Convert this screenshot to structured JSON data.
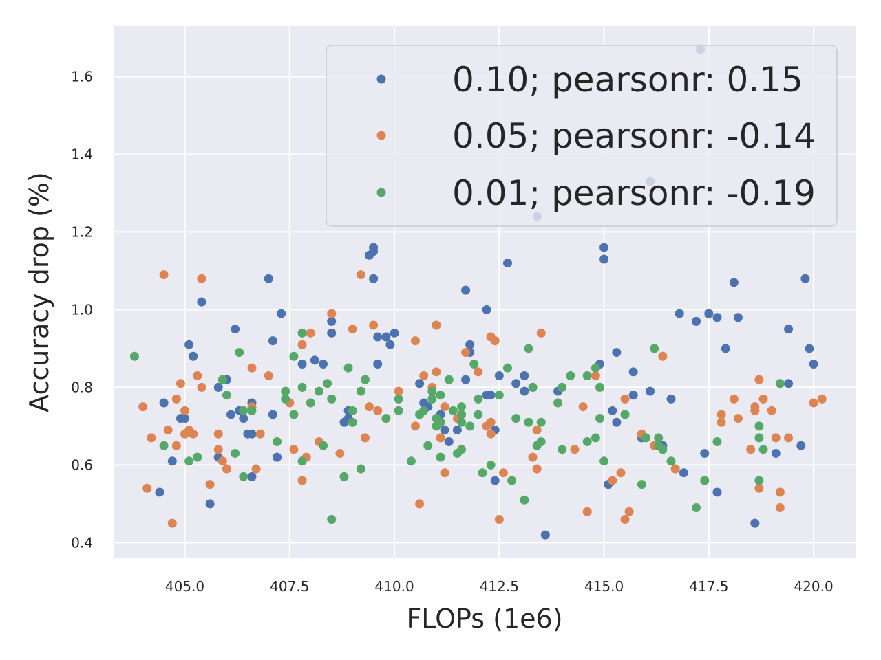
{
  "chart_data": {
    "type": "scatter",
    "title": "",
    "xlabel": "FLOPs (1e6)",
    "ylabel": "Accuracy drop (%)",
    "xlim": [
      403.3,
      421.0
    ],
    "ylim": [
      0.36,
      1.73
    ],
    "xticks": [
      405.0,
      407.5,
      410.0,
      412.5,
      415.0,
      417.5,
      420.0
    ],
    "xtick_labels": [
      "405.0",
      "407.5",
      "410.0",
      "412.5",
      "415.0",
      "417.5",
      "420.0"
    ],
    "yticks": [
      0.4,
      0.6,
      0.8,
      1.0,
      1.2,
      1.4,
      1.6
    ],
    "ytick_labels": [
      "0.4",
      "0.6",
      "0.8",
      "1.0",
      "1.2",
      "1.4",
      "1.6"
    ],
    "grid": true,
    "background": "#eaeaf2",
    "legend_position": "top-right",
    "series": [
      {
        "name": "0.10; pearsonr: 0.15",
        "color": "#4c72b0",
        "points": [
          [
            404.4,
            0.53
          ],
          [
            404.5,
            0.76
          ],
          [
            404.7,
            0.61
          ],
          [
            404.9,
            0.72
          ],
          [
            405.0,
            0.72
          ],
          [
            405.1,
            0.91
          ],
          [
            405.2,
            0.88
          ],
          [
            405.4,
            1.02
          ],
          [
            405.6,
            0.5
          ],
          [
            405.8,
            0.62
          ],
          [
            405.8,
            0.8
          ],
          [
            406.0,
            0.82
          ],
          [
            406.1,
            0.73
          ],
          [
            406.2,
            0.95
          ],
          [
            406.3,
            0.74
          ],
          [
            406.4,
            0.72
          ],
          [
            406.5,
            0.68
          ],
          [
            406.6,
            0.68
          ],
          [
            406.6,
            0.57
          ],
          [
            406.6,
            0.76
          ],
          [
            407.0,
            1.08
          ],
          [
            407.1,
            0.73
          ],
          [
            407.1,
            0.92
          ],
          [
            407.2,
            0.62
          ],
          [
            407.3,
            0.99
          ],
          [
            407.8,
            0.86
          ],
          [
            408.1,
            0.87
          ],
          [
            408.3,
            0.86
          ],
          [
            408.5,
            0.97
          ],
          [
            408.5,
            0.94
          ],
          [
            408.8,
            0.71
          ],
          [
            408.9,
            0.74
          ],
          [
            408.9,
            0.72
          ],
          [
            409.4,
            1.14
          ],
          [
            409.5,
            1.16
          ],
          [
            409.5,
            1.15
          ],
          [
            409.5,
            1.08
          ],
          [
            409.6,
            0.93
          ],
          [
            409.6,
            0.86
          ],
          [
            409.8,
            0.93
          ],
          [
            409.9,
            0.91
          ],
          [
            410.0,
            0.94
          ],
          [
            410.6,
            0.81
          ],
          [
            410.7,
            0.76
          ],
          [
            410.8,
            0.75
          ],
          [
            411.1,
            0.73
          ],
          [
            411.2,
            0.69
          ],
          [
            411.3,
            0.66
          ],
          [
            411.5,
            0.69
          ],
          [
            411.7,
            0.82
          ],
          [
            411.7,
            1.05
          ],
          [
            411.8,
            0.91
          ],
          [
            411.8,
            0.89
          ],
          [
            412.2,
            0.78
          ],
          [
            412.2,
            1.0
          ],
          [
            412.3,
            0.78
          ],
          [
            412.4,
            0.69
          ],
          [
            412.4,
            0.56
          ],
          [
            412.5,
            0.83
          ],
          [
            412.7,
            1.12
          ],
          [
            412.9,
            0.81
          ],
          [
            413.1,
            0.83
          ],
          [
            413.1,
            0.79
          ],
          [
            413.3,
            0.8
          ],
          [
            413.4,
            1.24
          ],
          [
            413.6,
            0.42
          ],
          [
            413.9,
            0.79
          ],
          [
            414.9,
            0.86
          ],
          [
            415.0,
            1.16
          ],
          [
            415.0,
            1.13
          ],
          [
            415.1,
            0.55
          ],
          [
            415.2,
            0.74
          ],
          [
            415.3,
            0.89
          ],
          [
            415.3,
            0.71
          ],
          [
            415.7,
            0.78
          ],
          [
            415.7,
            0.84
          ],
          [
            415.9,
            0.67
          ],
          [
            416.1,
            1.33
          ],
          [
            416.1,
            0.79
          ],
          [
            416.4,
            0.65
          ],
          [
            416.6,
            0.77
          ],
          [
            416.8,
            0.99
          ],
          [
            416.9,
            0.58
          ],
          [
            417.2,
            0.97
          ],
          [
            417.3,
            1.67
          ],
          [
            417.4,
            0.63
          ],
          [
            417.5,
            0.99
          ],
          [
            417.7,
            0.98
          ],
          [
            417.7,
            0.53
          ],
          [
            417.9,
            0.9
          ],
          [
            418.1,
            1.07
          ],
          [
            418.2,
            0.98
          ],
          [
            418.6,
            0.45
          ],
          [
            419.1,
            0.63
          ],
          [
            419.4,
            0.95
          ],
          [
            419.4,
            0.81
          ],
          [
            419.7,
            0.65
          ],
          [
            419.8,
            1.08
          ],
          [
            419.9,
            0.9
          ],
          [
            420.0,
            0.86
          ]
        ]
      },
      {
        "name": "0.05; pearsonr: -0.14",
        "color": "#dd8452",
        "points": [
          [
            404.0,
            0.75
          ],
          [
            404.1,
            0.54
          ],
          [
            404.2,
            0.67
          ],
          [
            404.5,
            1.09
          ],
          [
            404.6,
            0.69
          ],
          [
            404.7,
            0.45
          ],
          [
            404.8,
            0.77
          ],
          [
            404.8,
            0.65
          ],
          [
            404.9,
            0.81
          ],
          [
            405.0,
            0.74
          ],
          [
            405.0,
            0.68
          ],
          [
            405.1,
            0.69
          ],
          [
            405.2,
            0.68
          ],
          [
            405.3,
            0.83
          ],
          [
            405.4,
            1.08
          ],
          [
            405.4,
            0.8
          ],
          [
            405.6,
            0.55
          ],
          [
            405.8,
            0.68
          ],
          [
            405.8,
            0.64
          ],
          [
            405.9,
            0.61
          ],
          [
            406.0,
            0.59
          ],
          [
            406.6,
            0.75
          ],
          [
            406.6,
            0.85
          ],
          [
            406.7,
            0.59
          ],
          [
            406.8,
            0.68
          ],
          [
            407.0,
            0.83
          ],
          [
            407.5,
            0.76
          ],
          [
            407.6,
            0.64
          ],
          [
            407.8,
            0.91
          ],
          [
            407.8,
            0.56
          ],
          [
            407.9,
            0.62
          ],
          [
            408.0,
            0.94
          ],
          [
            408.2,
            0.66
          ],
          [
            408.5,
            0.99
          ],
          [
            408.7,
            0.63
          ],
          [
            409.0,
            0.95
          ],
          [
            409.2,
            1.09
          ],
          [
            409.3,
            0.67
          ],
          [
            409.4,
            0.75
          ],
          [
            409.5,
            0.96
          ],
          [
            409.6,
            0.74
          ],
          [
            410.1,
            0.79
          ],
          [
            410.5,
            0.7
          ],
          [
            410.5,
            0.92
          ],
          [
            410.6,
            0.5
          ],
          [
            410.7,
            0.83
          ],
          [
            410.9,
            0.8
          ],
          [
            411.0,
            0.96
          ],
          [
            411.0,
            0.84
          ],
          [
            411.1,
            0.67
          ],
          [
            411.2,
            0.75
          ],
          [
            411.2,
            0.58
          ],
          [
            411.5,
            0.72
          ],
          [
            411.7,
            0.89
          ],
          [
            412.0,
            0.84
          ],
          [
            412.2,
            0.7
          ],
          [
            412.3,
            0.93
          ],
          [
            412.3,
            0.68
          ],
          [
            412.3,
            0.71
          ],
          [
            412.4,
            0.92
          ],
          [
            412.5,
            0.46
          ],
          [
            412.6,
            0.58
          ],
          [
            413.3,
            0.62
          ],
          [
            413.4,
            0.59
          ],
          [
            413.4,
            0.69
          ],
          [
            413.5,
            0.94
          ],
          [
            414.3,
            0.64
          ],
          [
            414.5,
            0.75
          ],
          [
            414.6,
            0.48
          ],
          [
            414.8,
            0.83
          ],
          [
            415.2,
            0.56
          ],
          [
            415.4,
            0.58
          ],
          [
            415.5,
            0.46
          ],
          [
            415.5,
            0.77
          ],
          [
            415.6,
            0.48
          ],
          [
            415.9,
            0.68
          ],
          [
            416.2,
            0.65
          ],
          [
            416.4,
            0.88
          ],
          [
            416.7,
            0.59
          ],
          [
            417.8,
            0.73
          ],
          [
            417.8,
            0.71
          ],
          [
            418.1,
            0.77
          ],
          [
            418.2,
            0.72
          ],
          [
            418.5,
            0.64
          ],
          [
            418.6,
            0.75
          ],
          [
            418.6,
            0.74
          ],
          [
            418.7,
            0.82
          ],
          [
            418.7,
            0.54
          ],
          [
            418.8,
            0.77
          ],
          [
            419.0,
            0.74
          ],
          [
            419.1,
            0.67
          ],
          [
            419.2,
            0.49
          ],
          [
            419.2,
            0.53
          ],
          [
            419.4,
            0.67
          ],
          [
            420.0,
            0.76
          ],
          [
            420.2,
            0.77
          ]
        ]
      },
      {
        "name": "0.01; pearsonr: -0.19",
        "color": "#55a868",
        "points": [
          [
            403.8,
            0.88
          ],
          [
            404.5,
            0.65
          ],
          [
            405.1,
            0.61
          ],
          [
            405.3,
            0.62
          ],
          [
            405.9,
            0.82
          ],
          [
            406.0,
            0.78
          ],
          [
            406.2,
            0.63
          ],
          [
            406.3,
            0.89
          ],
          [
            406.4,
            0.57
          ],
          [
            406.4,
            0.74
          ],
          [
            406.6,
            0.74
          ],
          [
            407.2,
            0.66
          ],
          [
            407.4,
            0.79
          ],
          [
            407.4,
            0.77
          ],
          [
            407.6,
            0.73
          ],
          [
            407.6,
            0.88
          ],
          [
            407.8,
            0.8
          ],
          [
            407.8,
            0.61
          ],
          [
            407.8,
            0.94
          ],
          [
            408.0,
            0.76
          ],
          [
            408.2,
            0.79
          ],
          [
            408.3,
            0.65
          ],
          [
            408.4,
            0.81
          ],
          [
            408.5,
            0.77
          ],
          [
            408.5,
            0.46
          ],
          [
            408.8,
            0.57
          ],
          [
            408.9,
            0.85
          ],
          [
            409.0,
            0.74
          ],
          [
            409.0,
            0.71
          ],
          [
            409.2,
            0.79
          ],
          [
            409.2,
            0.59
          ],
          [
            409.3,
            0.82
          ],
          [
            409.8,
            0.72
          ],
          [
            410.1,
            0.77
          ],
          [
            410.1,
            0.74
          ],
          [
            410.4,
            0.61
          ],
          [
            410.6,
            0.73
          ],
          [
            410.7,
            0.74
          ],
          [
            410.8,
            0.65
          ],
          [
            410.9,
            0.79
          ],
          [
            410.9,
            0.77
          ],
          [
            411.0,
            0.72
          ],
          [
            411.0,
            0.7
          ],
          [
            411.1,
            0.71
          ],
          [
            411.1,
            0.78
          ],
          [
            411.1,
            0.62
          ],
          [
            411.3,
            0.82
          ],
          [
            411.4,
            0.74
          ],
          [
            411.5,
            0.63
          ],
          [
            411.6,
            0.75
          ],
          [
            411.6,
            0.73
          ],
          [
            411.6,
            0.64
          ],
          [
            411.6,
            0.71
          ],
          [
            411.8,
            0.7
          ],
          [
            411.9,
            0.86
          ],
          [
            412.0,
            0.77
          ],
          [
            412.0,
            0.73
          ],
          [
            412.1,
            0.58
          ],
          [
            412.3,
            0.6
          ],
          [
            412.5,
            0.78
          ],
          [
            412.7,
            0.85
          ],
          [
            412.8,
            0.56
          ],
          [
            412.9,
            0.72
          ],
          [
            413.1,
            0.51
          ],
          [
            413.2,
            0.71
          ],
          [
            413.2,
            0.9
          ],
          [
            413.3,
            0.8
          ],
          [
            413.4,
            0.65
          ],
          [
            413.5,
            0.71
          ],
          [
            413.5,
            0.66
          ],
          [
            413.9,
            0.76
          ],
          [
            414.0,
            0.8
          ],
          [
            414.0,
            0.64
          ],
          [
            414.2,
            0.83
          ],
          [
            414.6,
            0.83
          ],
          [
            414.6,
            0.66
          ],
          [
            414.8,
            0.85
          ],
          [
            414.8,
            0.67
          ],
          [
            414.9,
            0.72
          ],
          [
            414.9,
            0.8
          ],
          [
            415.0,
            0.61
          ],
          [
            415.5,
            0.73
          ],
          [
            415.9,
            0.55
          ],
          [
            416.0,
            0.67
          ],
          [
            416.2,
            0.9
          ],
          [
            416.3,
            0.67
          ],
          [
            416.3,
            0.65
          ],
          [
            416.4,
            0.64
          ],
          [
            416.6,
            0.61
          ],
          [
            417.2,
            0.49
          ],
          [
            417.4,
            0.56
          ],
          [
            417.7,
            0.66
          ],
          [
            418.7,
            0.7
          ],
          [
            418.7,
            0.67
          ],
          [
            418.7,
            0.56
          ],
          [
            418.8,
            0.64
          ],
          [
            419.2,
            0.81
          ]
        ]
      }
    ]
  }
}
